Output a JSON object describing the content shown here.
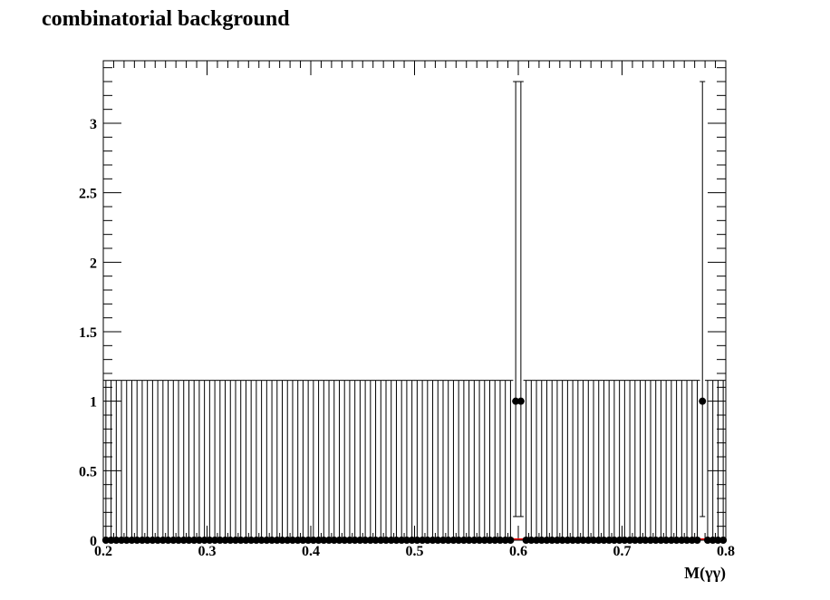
{
  "chart_data": {
    "type": "scatter",
    "title": "combinatorial background",
    "xlabel": "M(γγ)",
    "ylabel": "",
    "xlim": [
      0.2,
      0.8
    ],
    "ylim": [
      0,
      3.45
    ],
    "x_tick_labels": [
      "0.2",
      "0.3",
      "0.4",
      "0.5",
      "0.6",
      "0.7",
      "0.8"
    ],
    "y_tick_labels": [
      "0",
      "0.5",
      "1",
      "1.5",
      "2",
      "2.5",
      "3"
    ],
    "bins": 120,
    "bin_width": 0.005,
    "nonzero_bins": [
      {
        "x": 0.5925,
        "y": 1,
        "err_low": 0.83,
        "err_high": 2.3
      },
      {
        "x": 0.5975,
        "y": 1,
        "err_low": 0.83,
        "err_high": 2.3
      },
      {
        "x": 0.7775,
        "y": 1,
        "err_low": 0.83,
        "err_high": 2.3
      }
    ],
    "zero_bin_error_high": 1.15,
    "grid": false,
    "fit_line_color": "#ff0000",
    "marker_color": "#000000"
  }
}
